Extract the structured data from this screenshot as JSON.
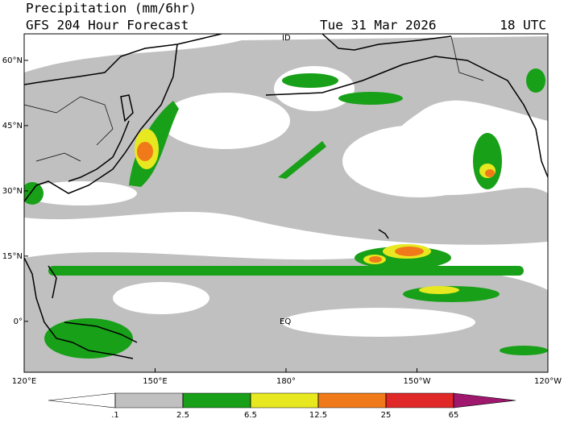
{
  "header": {
    "title": "Precipitation (mm/6hr)",
    "model": "GFS 204 Hour Forecast",
    "date": "Tue 31 Mar 2026",
    "time": "18 UTC"
  },
  "map": {
    "latlim": [
      -11.7,
      66.1
    ],
    "lonlim": [
      120,
      240
    ],
    "lat_ticks": [
      {
        "value": 60,
        "label": "60°N"
      },
      {
        "value": 45,
        "label": "45°N"
      },
      {
        "value": 30,
        "label": "30°N"
      },
      {
        "value": 15,
        "label": "15°N"
      },
      {
        "value": 0,
        "label": "0°"
      }
    ],
    "lon_ticks": [
      {
        "value": 120,
        "label": "120°E"
      },
      {
        "value": 150,
        "label": "150°E"
      },
      {
        "value": 180,
        "label": "180°"
      },
      {
        "value": 210,
        "label": "150°W"
      },
      {
        "value": 240,
        "label": "120°W"
      }
    ],
    "labels": [
      "EQ",
      "ID"
    ]
  },
  "colorbar": {
    "levels": [
      {
        "value": 0.1,
        "label": ".1"
      },
      2.5,
      6.5,
      12.5,
      25,
      65
    ],
    "colors": [
      "#ffffff",
      "#c0c0c0",
      "#18a018",
      "#e8e820",
      "#f07a1a",
      "#e02828",
      "#a0186e"
    ]
  }
}
